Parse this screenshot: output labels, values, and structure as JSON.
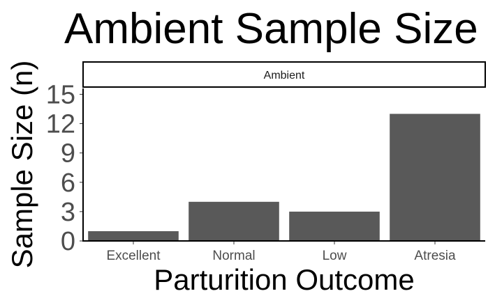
{
  "chart_data": {
    "type": "bar",
    "title": "Ambient Sample Size",
    "facet_label": "Ambient",
    "xlabel": "Parturition Outcome",
    "ylabel": "Sample Size (n)",
    "categories": [
      "Excellent",
      "Normal",
      "Low",
      "Atresia"
    ],
    "values": [
      1,
      4,
      3,
      13
    ],
    "ylim": [
      0,
      15.6
    ],
    "yticks": [
      0,
      3,
      6,
      9,
      12,
      15
    ],
    "grid": false,
    "legend": "none",
    "bar_color": "#595959"
  }
}
